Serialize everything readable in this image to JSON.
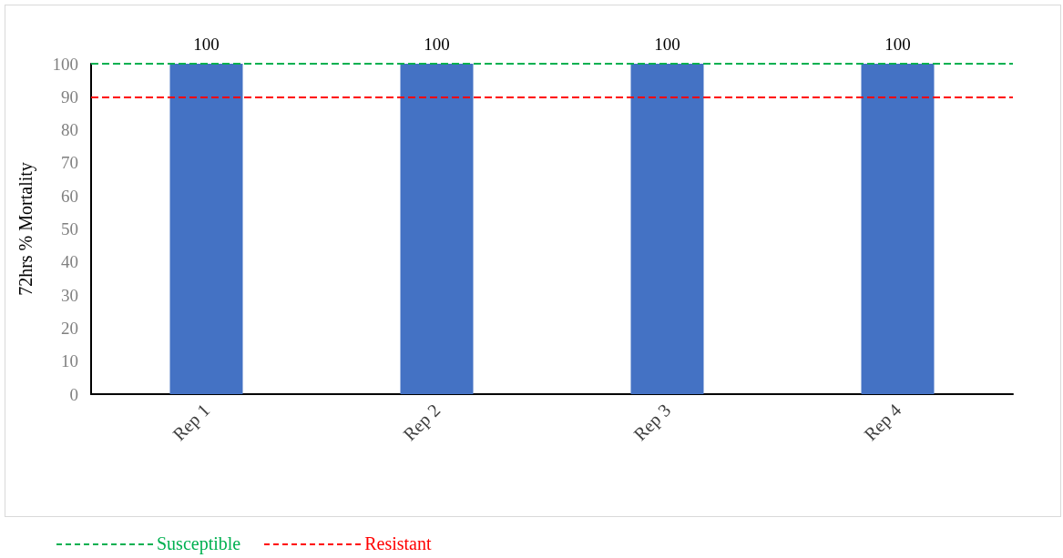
{
  "chart_data": {
    "type": "bar",
    "ylabel": "72hrs % Mortality",
    "categories": [
      "Rep 1",
      "Rep 2",
      "Rep 3",
      "Rep 4"
    ],
    "values": [
      100,
      100,
      100,
      100
    ],
    "color": "#4472c4",
    "ylim": [
      0,
      100
    ],
    "yticks": [
      0,
      10,
      20,
      30,
      40,
      50,
      60,
      70,
      80,
      90,
      100
    ],
    "data_labels": true,
    "grid": false,
    "ref_lines": [
      {
        "axis": "y",
        "value": 100,
        "label": "Susceptible",
        "color": "#00b050",
        "line_style": "dashed"
      },
      {
        "axis": "y",
        "value": 90,
        "label": "Resistant",
        "color": "#ff0000",
        "line_style": "dashed"
      }
    ]
  }
}
